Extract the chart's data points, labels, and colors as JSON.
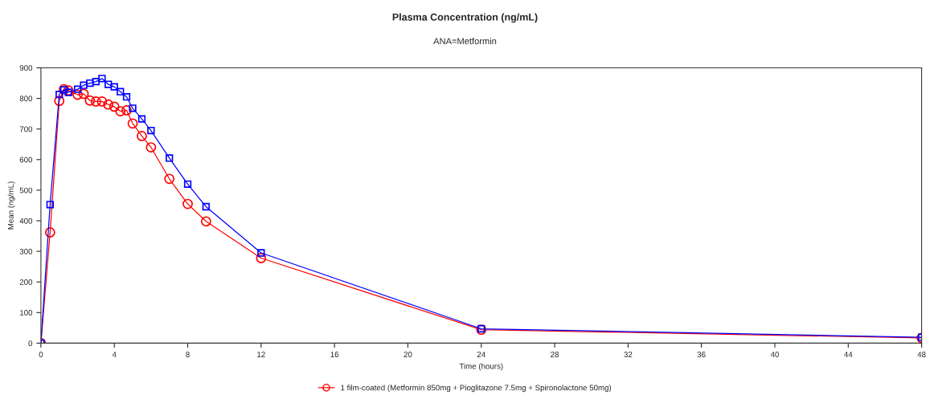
{
  "chart_data": {
    "type": "line",
    "title": "Plasma Concentration (ng/mL)",
    "subtitle": "ANA=Metformin",
    "xlabel": "Time (hours)",
    "ylabel": "Mean (ng/mL)",
    "x": [
      0,
      0.5,
      1,
      1.25,
      1.5,
      2,
      2.33,
      2.67,
      3,
      3.33,
      3.67,
      4,
      4.33,
      4.67,
      5,
      5.5,
      6,
      7,
      8,
      9,
      12,
      24,
      48
    ],
    "series": [
      {
        "name": "1 film-coated (Metformin 850mg + Pioglitazone 7.5mg + Spironolactone 50mg)",
        "color": "#ff0000",
        "marker": "circle",
        "values": [
          0,
          362,
          792,
          830,
          826,
          812,
          815,
          793,
          790,
          790,
          780,
          773,
          758,
          761,
          718,
          677,
          640,
          537,
          455,
          398,
          278,
          44,
          17
        ]
      },
      {
        "color": "#0000ff",
        "marker": "square",
        "values": [
          0,
          453,
          813,
          828,
          820,
          830,
          843,
          850,
          855,
          865,
          846,
          838,
          822,
          805,
          768,
          733,
          695,
          605,
          520,
          446,
          295,
          47,
          19
        ]
      }
    ],
    "xlim": [
      0,
      48
    ],
    "xticks": [
      0,
      4,
      8,
      12,
      16,
      20,
      24,
      28,
      32,
      36,
      40,
      44,
      48
    ],
    "ylim": [
      0,
      900
    ],
    "yticks": [
      0,
      100,
      200,
      300,
      400,
      500,
      600,
      700,
      800,
      900
    ],
    "grid": false,
    "legend": "bottom"
  }
}
